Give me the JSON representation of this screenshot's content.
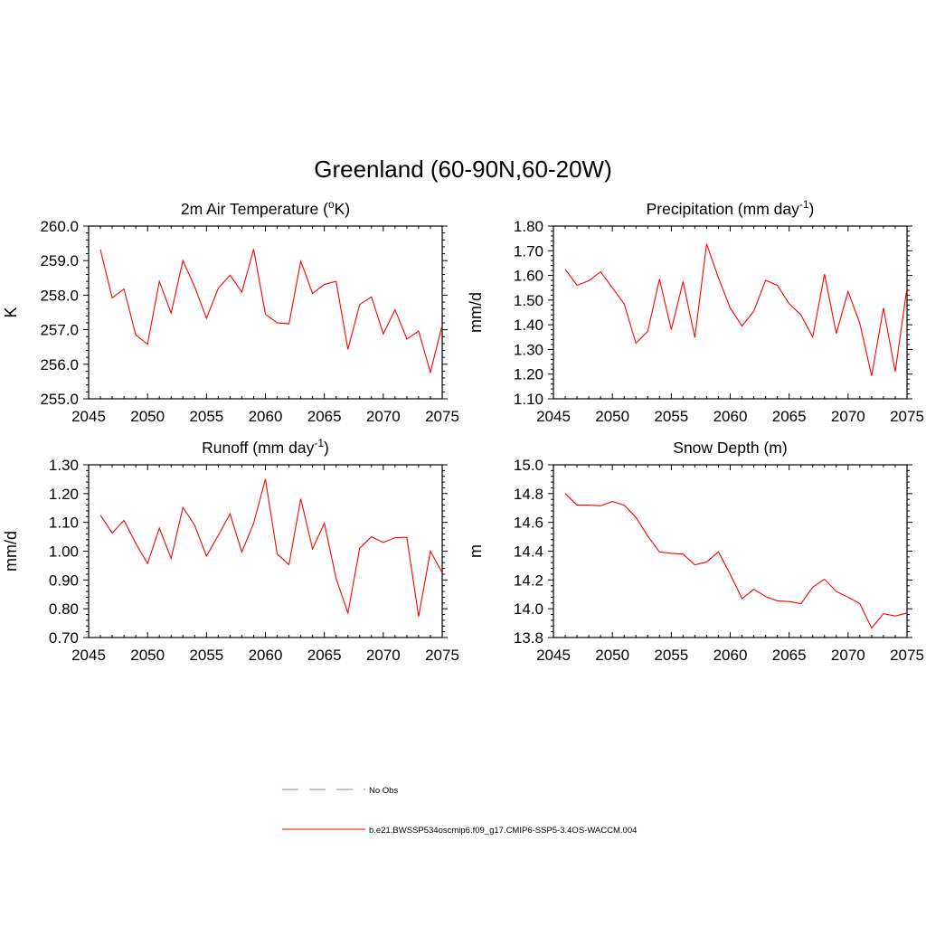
{
  "figure": {
    "title": "Greenland (60-90N,60-20W)"
  },
  "legend": {
    "items": [
      {
        "label": "No Obs",
        "color": "#9999dd",
        "style": "dashed"
      },
      {
        "label": "b.e21.BWSSP534oscmip6.f09_g17.CMIP6-SSP5-3.4OS-WACCM.004",
        "color": "#ff0000",
        "style": "solid"
      }
    ]
  },
  "chart_data": [
    {
      "type": "line",
      "title": "2m Air Temperature (",
      "title_sup": "o",
      "title_after": "K)",
      "ylabel": "K",
      "xlim": [
        2045,
        2075
      ],
      "ylim": [
        255.0,
        260.0
      ],
      "xticks": [
        2045,
        2050,
        2055,
        2060,
        2065,
        2070,
        2075
      ],
      "yticks": [
        255.0,
        256.0,
        257.0,
        258.0,
        259.0,
        260.0
      ],
      "ytick_decimals": 1,
      "series": [
        {
          "color": "#ff0000",
          "x": [
            2046,
            2047,
            2048,
            2049,
            2050,
            2051,
            2052,
            2053,
            2054,
            2055,
            2056,
            2057,
            2058,
            2059,
            2060,
            2061,
            2062,
            2063,
            2064,
            2065,
            2066,
            2067,
            2068,
            2069,
            2070,
            2071,
            2072,
            2073,
            2074,
            2075
          ],
          "y": [
            259.32,
            257.92,
            258.18,
            256.85,
            256.58,
            258.4,
            257.48,
            259.0,
            258.24,
            257.33,
            258.2,
            258.58,
            258.09,
            259.33,
            257.45,
            257.2,
            257.17,
            258.98,
            258.05,
            258.31,
            258.4,
            256.43,
            257.73,
            257.95,
            256.88,
            257.58,
            256.73,
            256.96,
            255.77,
            257.13
          ]
        }
      ]
    },
    {
      "type": "line",
      "title": "Precipitation (mm day",
      "title_sup": "-1",
      "title_after": ")",
      "ylabel": "mm/d",
      "xlim": [
        2045,
        2075
      ],
      "ylim": [
        1.1,
        1.8
      ],
      "xticks": [
        2045,
        2050,
        2055,
        2060,
        2065,
        2070,
        2075
      ],
      "yticks": [
        1.1,
        1.2,
        1.3,
        1.4,
        1.5,
        1.6,
        1.7,
        1.8
      ],
      "ytick_decimals": 2,
      "series": [
        {
          "color": "#ff0000",
          "x": [
            2046,
            2047,
            2048,
            2049,
            2050,
            2051,
            2052,
            2053,
            2054,
            2055,
            2056,
            2057,
            2058,
            2059,
            2060,
            2061,
            2062,
            2063,
            2064,
            2065,
            2066,
            2067,
            2068,
            2069,
            2070,
            2071,
            2072,
            2073,
            2074,
            2075
          ],
          "y": [
            1.625,
            1.56,
            1.578,
            1.615,
            1.55,
            1.485,
            1.325,
            1.373,
            1.585,
            1.38,
            1.575,
            1.348,
            1.728,
            1.59,
            1.468,
            1.395,
            1.455,
            1.58,
            1.56,
            1.485,
            1.44,
            1.35,
            1.605,
            1.365,
            1.535,
            1.405,
            1.193,
            1.468,
            1.21,
            1.55
          ]
        }
      ]
    },
    {
      "type": "line",
      "title": "Runoff (mm day",
      "title_sup": "-1",
      "title_after": ")",
      "ylabel": "mm/d",
      "xlim": [
        2045,
        2075
      ],
      "ylim": [
        0.7,
        1.3
      ],
      "xticks": [
        2045,
        2050,
        2055,
        2060,
        2065,
        2070,
        2075
      ],
      "yticks": [
        0.7,
        0.8,
        0.9,
        1.0,
        1.1,
        1.2,
        1.3
      ],
      "ytick_decimals": 2,
      "series": [
        {
          "color": "#ff0000",
          "x": [
            2046,
            2047,
            2048,
            2049,
            2050,
            2051,
            2052,
            2053,
            2054,
            2055,
            2056,
            2057,
            2058,
            2059,
            2060,
            2061,
            2062,
            2063,
            2064,
            2065,
            2066,
            2067,
            2068,
            2069,
            2070,
            2071,
            2072,
            2073,
            2074,
            2075
          ],
          "y": [
            1.125,
            1.063,
            1.107,
            1.027,
            0.957,
            1.08,
            0.975,
            1.152,
            1.09,
            0.983,
            1.055,
            1.13,
            0.997,
            1.097,
            1.25,
            0.99,
            0.953,
            1.182,
            1.008,
            1.097,
            0.905,
            0.785,
            1.01,
            1.05,
            1.03,
            1.047,
            1.048,
            0.773,
            1.0,
            0.925
          ]
        }
      ]
    },
    {
      "type": "line",
      "title": "Snow Depth (m)",
      "title_sup": "",
      "title_after": "",
      "ylabel": "m",
      "xlim": [
        2045,
        2075
      ],
      "ylim": [
        13.8,
        15.0
      ],
      "xticks": [
        2045,
        2050,
        2055,
        2060,
        2065,
        2070,
        2075
      ],
      "yticks": [
        13.8,
        14.0,
        14.2,
        14.4,
        14.6,
        14.8,
        15.0
      ],
      "ytick_decimals": 1,
      "series": [
        {
          "color": "#ff0000",
          "x": [
            2046,
            2047,
            2048,
            2049,
            2050,
            2051,
            2052,
            2053,
            2054,
            2055,
            2056,
            2057,
            2058,
            2059,
            2060,
            2061,
            2062,
            2063,
            2064,
            2065,
            2066,
            2067,
            2068,
            2069,
            2070,
            2071,
            2072,
            2073,
            2074,
            2075
          ],
          "y": [
            14.8,
            14.72,
            14.72,
            14.715,
            14.745,
            14.72,
            14.635,
            14.505,
            14.395,
            14.385,
            14.38,
            14.305,
            14.325,
            14.395,
            14.24,
            14.07,
            14.135,
            14.085,
            14.055,
            14.05,
            14.035,
            14.15,
            14.205,
            14.12,
            14.08,
            14.035,
            13.865,
            13.965,
            13.95,
            13.97
          ]
        }
      ]
    }
  ]
}
